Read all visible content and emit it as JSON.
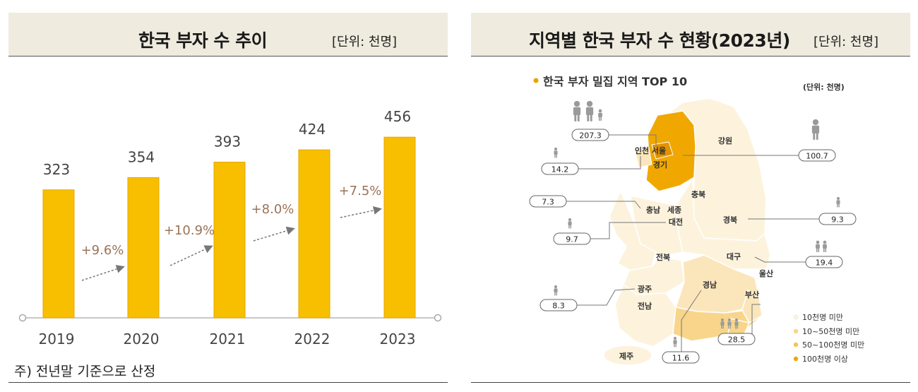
{
  "left": {
    "title": "한국 부자 수 추이",
    "unit": "[단위: 천명]",
    "footnote": "주) 전년말 기준으로 산정"
  },
  "right": {
    "title": "지역별 한국 부자 수 현황(2023년)",
    "unit": "[단위: 천명]"
  },
  "colors": {
    "bar": "#f7bf00",
    "bar_edge": "#e8a600",
    "growth_text": "#9b7358",
    "map_dark": "#f0a800",
    "map_mid": "#f8d58a",
    "map_light": "#fbe6bc",
    "map_pale": "#fdf3dd",
    "header_bg": "#efebde"
  },
  "chart_data": [
    {
      "type": "bar",
      "title": "한국 부자 수 추이",
      "unit": "[단위: 천명]",
      "categories": [
        "2019",
        "2020",
        "2021",
        "2022",
        "2023"
      ],
      "values": [
        323,
        354,
        393,
        424,
        456
      ],
      "growth_labels": [
        "+9.6%",
        "+10.9%",
        "+8.0%",
        "+7.5%"
      ],
      "ylim": [
        0,
        500
      ]
    },
    {
      "type": "map",
      "title": "한국 부자 밀집 지역 TOP 10",
      "unit": "(단위: 천명)",
      "regions": [
        {
          "name": "서울",
          "value": 207.3,
          "icons": 2
        },
        {
          "name": "경기",
          "value": 100.7,
          "icons": 1
        },
        {
          "name": "부산",
          "value": 28.5,
          "icons": 3
        },
        {
          "name": "대구",
          "value": 19.4,
          "icons": 2
        },
        {
          "name": "인천",
          "value": 14.2,
          "icons": 1
        },
        {
          "name": "경남",
          "value": 11.6,
          "icons": 1
        },
        {
          "name": "대전",
          "value": 9.7,
          "icons": 1
        },
        {
          "name": "경북",
          "value": 9.3,
          "icons": 1
        },
        {
          "name": "광주",
          "value": 8.3,
          "icons": 1
        },
        {
          "name": "충남",
          "value": 7.3,
          "icons": 1
        }
      ],
      "other_labels": [
        "강원",
        "충북",
        "세종",
        "전북",
        "울산",
        "전남",
        "제주"
      ],
      "legend": [
        {
          "label": "10천명 미만",
          "color": "#fdf3dd"
        },
        {
          "label": "10~50천명 미만",
          "color": "#f8d58a"
        },
        {
          "label": "50~100천명 미만",
          "color": "#f6c453"
        },
        {
          "label": "100천명 이상",
          "color": "#f0a800"
        }
      ]
    }
  ]
}
